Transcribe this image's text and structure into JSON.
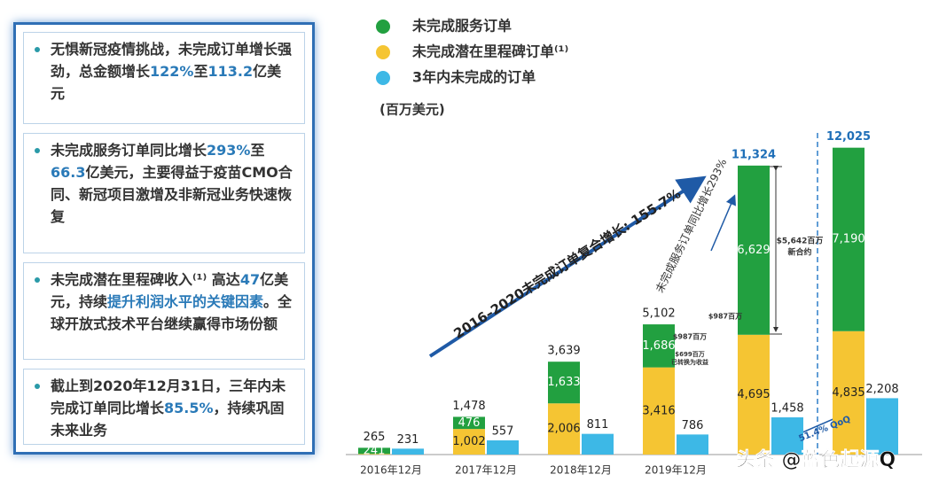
{
  "panel": {
    "bullets": [
      [
        {
          "text": "无惧新冠疫情挑战，未完成订单增长强劲，总金额增长"
        },
        {
          "text": "122%",
          "color": "#2a7ab8"
        },
        {
          "text": "至"
        },
        {
          "text": "113.2",
          "color": "#2a7ab8"
        },
        {
          "text": "亿美元"
        }
      ],
      [
        {
          "text": "未完成服务订单同比增长"
        },
        {
          "text": "293%",
          "color": "#2a7ab8"
        },
        {
          "text": "至"
        },
        {
          "text": "66.3",
          "color": "#2a7ab8"
        },
        {
          "text": "亿美元，主要得益于疫苗CMO合同、新冠项目激增及非新冠业务快速恢复"
        }
      ],
      [
        {
          "text": "未完成潜在里程碑收入⁽¹⁾ 高达"
        },
        {
          "text": "47",
          "color": "#2a7ab8"
        },
        {
          "text": "亿美元，持续"
        },
        {
          "text": "提升利润水平的关键因素",
          "color": "#2a7ab8"
        },
        {
          "text": "。全球开放式技术平台继续赢得市场份额"
        }
      ],
      [
        {
          "text": "截止到2020年12月31日，三年内未完成订单同比增长"
        },
        {
          "text": "85.5%",
          "color": "#2a7ab8"
        },
        {
          "text": "，持续巩固未来业务"
        }
      ]
    ]
  },
  "chart_data": {
    "type": "bar",
    "unit_label": "(百万美元)",
    "categories": [
      "2016年12月",
      "2017年12月",
      "2018年12月",
      "2019年12月",
      null,
      null
    ],
    "series": [
      {
        "name": "未完成潜在里程碑订单⁽¹⁾",
        "color": "#f5c533",
        "stack": "a",
        "values": [
          24,
          1002,
          2006,
          3416,
          4695,
          4835
        ],
        "value_labels": [
          null,
          "1,002",
          "2,006",
          "3,416",
          "4,695",
          "4,835"
        ]
      },
      {
        "name": "未完成服务订单",
        "color": "#22a040",
        "stack": "a",
        "values": [
          241,
          476,
          1633,
          1686,
          6629,
          7190
        ],
        "value_labels": [
          "241",
          "476",
          "1,633",
          "1,686",
          "6,629",
          "7,190"
        ]
      },
      {
        "name": "3年内未完成的订单",
        "color": "#3db8e6",
        "stack": "b",
        "values": [
          231,
          557,
          811,
          786,
          1458,
          2208
        ],
        "value_labels": [
          "231",
          "557",
          "811",
          "786",
          "1,458",
          "2,208"
        ]
      }
    ],
    "totals": [
      265,
      1478,
      3639,
      5102,
      11324,
      12025
    ],
    "total_labels": [
      "265",
      "1,478",
      "3,639",
      "5,102",
      "11,324",
      "12,025"
    ],
    "ylim": [
      0,
      12500
    ],
    "annotations": [
      "2016–2020未完成订单复合增长: 155.7%",
      "未完成服务订单同比增长293%",
      "$5,642百万",
      "新合约",
      "$987百万",
      "$987百万",
      "$699百万",
      "已转换为收益",
      "51.4% QoQ"
    ],
    "watermark": "头条 @蓝色起源Q"
  }
}
